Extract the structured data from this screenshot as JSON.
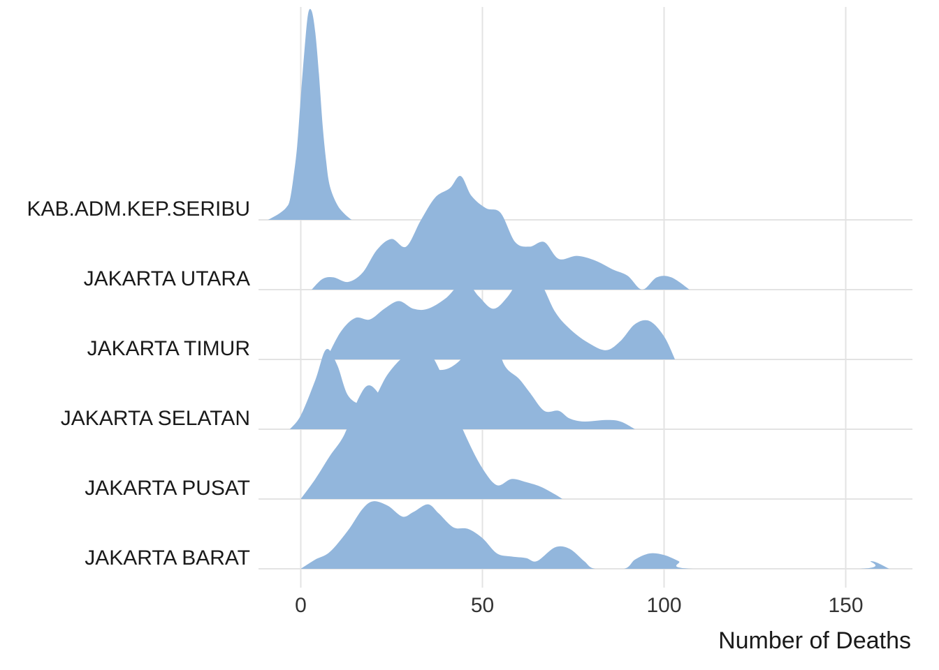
{
  "chart_data": {
    "type": "ridgeline",
    "xlabel": "Number of Deaths",
    "ylabel": "",
    "xlim": [
      -10,
      168
    ],
    "x_ticks": [
      0,
      50,
      100,
      150
    ],
    "grid": true,
    "fill_color": "#92B6DC",
    "series": [
      {
        "name": "JAKARTA BARAT",
        "density": [
          [
            0,
            0
          ],
          [
            4,
            0.06
          ],
          [
            8,
            0.11
          ],
          [
            13,
            0.25
          ],
          [
            17,
            0.39
          ],
          [
            20,
            0.44
          ],
          [
            24,
            0.41
          ],
          [
            28,
            0.34
          ],
          [
            31,
            0.37
          ],
          [
            35,
            0.42
          ],
          [
            38,
            0.36
          ],
          [
            42,
            0.27
          ],
          [
            46,
            0.26
          ],
          [
            50,
            0.2
          ],
          [
            54,
            0.1
          ],
          [
            58,
            0.08
          ],
          [
            62,
            0.07
          ],
          [
            65,
            0.05
          ],
          [
            70,
            0.14
          ],
          [
            74,
            0.13
          ],
          [
            78,
            0.05
          ],
          [
            81,
            0
          ],
          [
            89,
            0
          ],
          [
            92,
            0.06
          ],
          [
            96,
            0.1
          ],
          [
            100,
            0.09
          ],
          [
            104,
            0.05
          ],
          [
            108,
            0
          ],
          [
            154,
            0
          ],
          [
            157,
            0.05
          ],
          [
            162,
            0
          ]
        ]
      },
      {
        "name": "JAKARTA PUSAT",
        "density": [
          [
            0,
            0
          ],
          [
            4,
            0.13
          ],
          [
            8,
            0.28
          ],
          [
            12,
            0.42
          ],
          [
            16,
            0.66
          ],
          [
            19,
            0.74
          ],
          [
            23,
            0.64
          ],
          [
            27,
            0.53
          ],
          [
            30,
            0.64
          ],
          [
            33,
            0.93
          ],
          [
            35,
            0.96
          ],
          [
            38,
            0.85
          ],
          [
            42,
            0.6
          ],
          [
            46,
            0.38
          ],
          [
            50,
            0.2
          ],
          [
            54,
            0.09
          ],
          [
            58,
            0.13
          ],
          [
            62,
            0.11
          ],
          [
            66,
            0.08
          ],
          [
            70,
            0.03
          ],
          [
            72,
            0
          ]
        ]
      },
      {
        "name": "JAKARTA SELATAN",
        "density": [
          [
            -3,
            0
          ],
          [
            0,
            0.09
          ],
          [
            4,
            0.32
          ],
          [
            7,
            0.52
          ],
          [
            10,
            0.42
          ],
          [
            13,
            0.22
          ],
          [
            17,
            0.16
          ],
          [
            20,
            0.19
          ],
          [
            24,
            0.36
          ],
          [
            29,
            0.48
          ],
          [
            33,
            0.45
          ],
          [
            37,
            0.39
          ],
          [
            41,
            0.4
          ],
          [
            45,
            0.48
          ],
          [
            48,
            0.61
          ],
          [
            50,
            0.72
          ],
          [
            53,
            0.64
          ],
          [
            56,
            0.42
          ],
          [
            60,
            0.33
          ],
          [
            63,
            0.24
          ],
          [
            67,
            0.12
          ],
          [
            71,
            0.12
          ],
          [
            74,
            0.07
          ],
          [
            78,
            0.05
          ],
          [
            84,
            0.06
          ],
          [
            88,
            0.05
          ],
          [
            92,
            0
          ]
        ]
      },
      {
        "name": "JAKARTA TIMUR",
        "density": [
          [
            7,
            0
          ],
          [
            11,
            0.18
          ],
          [
            15,
            0.27
          ],
          [
            19,
            0.26
          ],
          [
            23,
            0.33
          ],
          [
            27,
            0.38
          ],
          [
            31,
            0.33
          ],
          [
            35,
            0.33
          ],
          [
            40,
            0.4
          ],
          [
            45,
            0.51
          ],
          [
            49,
            0.41
          ],
          [
            53,
            0.33
          ],
          [
            57,
            0.41
          ],
          [
            62,
            0.58
          ],
          [
            66,
            0.5
          ],
          [
            70,
            0.31
          ],
          [
            74,
            0.2
          ],
          [
            79,
            0.11
          ],
          [
            84,
            0.06
          ],
          [
            88,
            0.12
          ],
          [
            92,
            0.23
          ],
          [
            96,
            0.25
          ],
          [
            100,
            0.15
          ],
          [
            103,
            0
          ]
        ]
      },
      {
        "name": "JAKARTA UTARA",
        "density": [
          [
            3,
            0
          ],
          [
            6,
            0.07
          ],
          [
            9,
            0.08
          ],
          [
            13,
            0.05
          ],
          [
            17,
            0.11
          ],
          [
            21,
            0.26
          ],
          [
            25,
            0.33
          ],
          [
            29,
            0.28
          ],
          [
            33,
            0.45
          ],
          [
            37,
            0.6
          ],
          [
            41,
            0.66
          ],
          [
            44,
            0.74
          ],
          [
            47,
            0.61
          ],
          [
            51,
            0.53
          ],
          [
            55,
            0.5
          ],
          [
            59,
            0.31
          ],
          [
            63,
            0.28
          ],
          [
            67,
            0.31
          ],
          [
            71,
            0.2
          ],
          [
            76,
            0.22
          ],
          [
            81,
            0.19
          ],
          [
            86,
            0.13
          ],
          [
            90,
            0.09
          ],
          [
            94,
            0
          ],
          [
            98,
            0.08
          ],
          [
            102,
            0.08
          ],
          [
            107,
            0
          ]
        ]
      },
      {
        "name": "KAB.ADM.KEP.SERIBU",
        "density": [
          [
            -9,
            0
          ],
          [
            -6,
            0.04
          ],
          [
            -4,
            0.08
          ],
          [
            -3,
            0.13
          ],
          [
            -2,
            0.28
          ],
          [
            -1,
            0.48
          ],
          [
            0,
            0.8
          ],
          [
            1,
            1.1
          ],
          [
            2,
            1.34
          ],
          [
            3,
            1.36
          ],
          [
            4,
            1.22
          ],
          [
            5,
            0.95
          ],
          [
            6,
            0.62
          ],
          [
            7,
            0.38
          ],
          [
            8,
            0.22
          ],
          [
            10,
            0.1
          ],
          [
            12,
            0.04
          ],
          [
            14,
            0
          ]
        ]
      }
    ]
  }
}
